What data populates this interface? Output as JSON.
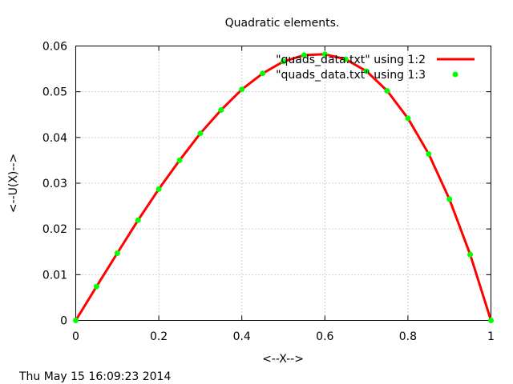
{
  "timestamp": "Thu May 15 16:09:23 2014",
  "colors": {
    "series1": "#ff0000",
    "series2": "#00ff00"
  },
  "chart_data": {
    "type": "line",
    "title": "Quadratic elements.",
    "xlabel": "<--X-->",
    "ylabel": "<--U(X)-->",
    "xlim": [
      0,
      1
    ],
    "ylim": [
      0,
      0.06
    ],
    "grid": true,
    "legend_position": "top-right",
    "xticks": [
      "0",
      "0.2",
      "0.4",
      "0.6",
      "0.8",
      "1"
    ],
    "yticks": [
      "0",
      "0.01",
      "0.02",
      "0.03",
      "0.04",
      "0.05",
      "0.06"
    ],
    "x": [
      0,
      0.05,
      0.1,
      0.15,
      0.2,
      0.25,
      0.3,
      0.35,
      0.4,
      0.45,
      0.5,
      0.55,
      0.6,
      0.65,
      0.7,
      0.75,
      0.8,
      0.85,
      0.9,
      0.95,
      1.0
    ],
    "series": [
      {
        "name": "\"quads_data.txt\" using 1:2",
        "style": "line",
        "color": "#ff0000",
        "values": [
          0,
          0.0074,
          0.0147,
          0.0219,
          0.0287,
          0.035,
          0.0409,
          0.046,
          0.0505,
          0.054,
          0.0566,
          0.058,
          0.0582,
          0.0571,
          0.0545,
          0.0502,
          0.0442,
          0.0364,
          0.0265,
          0.0144,
          0
        ]
      },
      {
        "name": "\"quads_data.txt\" using 1:3",
        "style": "points",
        "color": "#00ff00",
        "values": [
          0,
          0.0074,
          0.0147,
          0.0219,
          0.0287,
          0.035,
          0.0409,
          0.046,
          0.0505,
          0.054,
          0.0566,
          0.058,
          0.0582,
          0.0571,
          0.0545,
          0.0502,
          0.0442,
          0.0364,
          0.0265,
          0.0144,
          0
        ]
      }
    ]
  }
}
